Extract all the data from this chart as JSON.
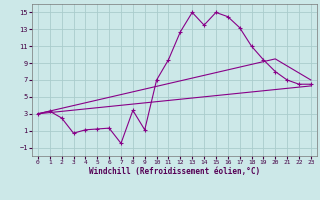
{
  "xlabel": "Windchill (Refroidissement éolien,°C)",
  "bg_color": "#cce8e8",
  "line_color": "#880088",
  "grid_color": "#aacccc",
  "xlim": [
    -0.5,
    23.5
  ],
  "ylim": [
    -2,
    16
  ],
  "xticks": [
    0,
    1,
    2,
    3,
    4,
    5,
    6,
    7,
    8,
    9,
    10,
    11,
    12,
    13,
    14,
    15,
    16,
    17,
    18,
    19,
    20,
    21,
    22,
    23
  ],
  "yticks": [
    -1,
    1,
    3,
    5,
    7,
    9,
    11,
    13,
    15
  ],
  "line1_x": [
    0,
    1,
    2,
    3,
    4,
    5,
    6,
    7,
    8,
    9,
    10,
    11,
    12,
    13,
    14,
    15,
    16,
    17,
    18,
    19,
    20,
    21,
    22,
    23
  ],
  "line1_y": [
    3.0,
    3.3,
    2.5,
    0.7,
    1.1,
    1.2,
    1.3,
    -0.5,
    3.4,
    1.1,
    7.0,
    9.4,
    12.7,
    15.0,
    13.5,
    15.0,
    14.5,
    13.2,
    11.0,
    9.4,
    8.0,
    7.0,
    6.5,
    6.5
  ],
  "line2_x": [
    0,
    20,
    23
  ],
  "line2_y": [
    3.0,
    9.5,
    7.0
  ],
  "line3_x": [
    0,
    23
  ],
  "line3_y": [
    3.0,
    6.3
  ],
  "marker": "+"
}
